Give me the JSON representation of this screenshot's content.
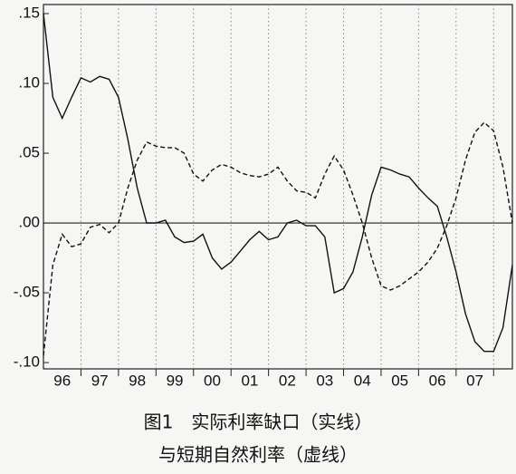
{
  "chart_data": {
    "type": "line",
    "caption": [
      "图1　实际利率缺口（实线）",
      "与短期自然利率（虚线）"
    ],
    "x": [
      96,
      96.25,
      96.5,
      96.75,
      97,
      97.25,
      97.5,
      97.75,
      98,
      98.25,
      98.5,
      98.75,
      99,
      99.25,
      99.5,
      99.75,
      100,
      100.25,
      100.5,
      100.75,
      101,
      101.25,
      101.5,
      101.75,
      102,
      102.25,
      102.5,
      102.75,
      103,
      103.25,
      103.5,
      103.75,
      104,
      104.25,
      104.5,
      104.75,
      105,
      105.25,
      105.5,
      105.75,
      106,
      106.25,
      106.5,
      106.75,
      107,
      107.25,
      107.5,
      107.75,
      108,
      108.25,
      108.5
    ],
    "series": [
      {
        "color": "#111111",
        "style": "solid",
        "values": [
          0.15,
          0.09,
          0.075,
          0.09,
          0.104,
          0.101,
          0.105,
          0.103,
          0.09,
          0.06,
          0.025,
          0.0,
          0.0,
          0.002,
          -0.01,
          -0.014,
          -0.013,
          -0.008,
          -0.025,
          -0.033,
          -0.028,
          -0.02,
          -0.012,
          -0.006,
          -0.012,
          -0.01,
          0.0,
          0.002,
          -0.002,
          -0.002,
          -0.01,
          -0.05,
          -0.047,
          -0.035,
          -0.01,
          0.02,
          0.04,
          0.038,
          0.035,
          0.033,
          0.025,
          0.018,
          0.012,
          -0.01,
          -0.035,
          -0.065,
          -0.085,
          -0.092,
          -0.092,
          -0.075,
          -0.03
        ]
      },
      {
        "color": "#111111",
        "style": "dashed",
        "values": [
          -0.095,
          -0.03,
          -0.008,
          -0.017,
          -0.015,
          -0.003,
          -0.001,
          -0.007,
          0.0,
          0.025,
          0.045,
          0.058,
          0.055,
          0.054,
          0.054,
          0.05,
          0.035,
          0.03,
          0.038,
          0.042,
          0.04,
          0.036,
          0.034,
          0.033,
          0.035,
          0.04,
          0.03,
          0.023,
          0.022,
          0.018,
          0.035,
          0.048,
          0.038,
          0.02,
          0.0,
          -0.025,
          -0.045,
          -0.048,
          -0.045,
          -0.04,
          -0.035,
          -0.028,
          -0.018,
          -0.002,
          0.018,
          0.045,
          0.065,
          0.072,
          0.066,
          0.04,
          0.0
        ]
      }
    ],
    "xlim": [
      96,
      108.5
    ],
    "xticks": [
      97,
      98,
      99,
      100,
      101,
      102,
      103,
      104,
      105,
      106,
      107,
      108
    ],
    "xtick_labels": [
      {
        "value": 96.5,
        "label": "96"
      },
      {
        "value": 97.5,
        "label": "97"
      },
      {
        "value": 98.5,
        "label": "98"
      },
      {
        "value": 99.5,
        "label": "99"
      },
      {
        "value": 100.5,
        "label": "00"
      },
      {
        "value": 101.5,
        "label": "01"
      },
      {
        "value": 102.5,
        "label": "02"
      },
      {
        "value": 103.5,
        "label": "03"
      },
      {
        "value": 104.5,
        "label": "04"
      },
      {
        "value": 105.5,
        "label": "05"
      },
      {
        "value": 106.5,
        "label": "06"
      },
      {
        "value": 107.5,
        "label": "07"
      }
    ],
    "ylim": [
      -0.1045,
      0.1565
    ],
    "yticks": [
      {
        "value": 0.15,
        "label": ".15"
      },
      {
        "value": 0.1,
        "label": ".10"
      },
      {
        "value": 0.05,
        "label": ".05"
      },
      {
        "value": 0,
        "label": ".00"
      },
      {
        "value": -0.05,
        "label": "-.05"
      },
      {
        "value": -0.1,
        "label": "-.10"
      }
    ]
  }
}
